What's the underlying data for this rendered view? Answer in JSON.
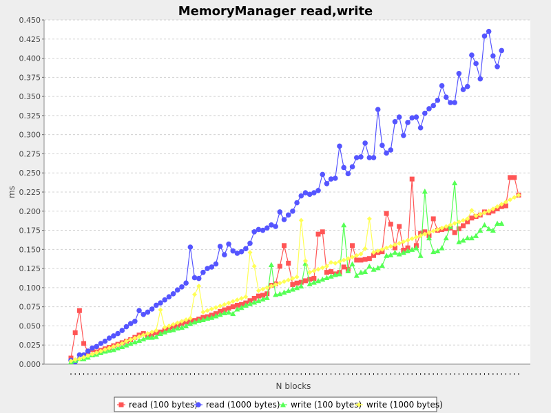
{
  "chart_data": {
    "type": "line",
    "title": "MemoryManager read,write",
    "xlabel": "N blocks",
    "ylabel": "ms",
    "ylim": [
      0,
      0.45
    ],
    "y_ticks": [
      "0.000",
      "0.025",
      "0.050",
      "0.075",
      "0.100",
      "0.125",
      "0.150",
      "0.175",
      "0.200",
      "0.225",
      "0.250",
      "0.275",
      "0.300",
      "0.325",
      "0.350",
      "0.375",
      "0.400",
      "0.425",
      "0.450"
    ],
    "grid": true,
    "legend_position": "bottom",
    "series": [
      {
        "name": "read (100 bytes)",
        "color": "#ff5555",
        "marker": "square",
        "values": [
          0.008,
          0.041,
          0.07,
          0.027,
          0.016,
          0.019,
          0.016,
          0.018,
          0.02,
          0.022,
          0.024,
          0.026,
          0.028,
          0.03,
          0.032,
          0.035,
          0.038,
          0.04,
          0.037,
          0.039,
          0.041,
          0.042,
          0.044,
          0.046,
          0.049,
          0.051,
          0.053,
          0.055,
          0.056,
          0.057,
          0.059,
          0.061,
          0.062,
          0.064,
          0.066,
          0.069,
          0.071,
          0.073,
          0.075,
          0.077,
          0.078,
          0.08,
          0.083,
          0.086,
          0.089,
          0.09,
          0.092,
          0.103,
          0.105,
          0.128,
          0.155,
          0.132,
          0.104,
          0.106,
          0.107,
          0.109,
          0.111,
          0.112,
          0.17,
          0.173,
          0.12,
          0.121,
          0.118,
          0.12,
          0.127,
          0.124,
          0.155,
          0.136,
          0.136,
          0.137,
          0.138,
          0.142,
          0.146,
          0.147,
          0.197,
          0.183,
          0.152,
          0.18,
          0.149,
          0.152,
          0.242,
          0.155,
          0.171,
          0.173,
          0.168,
          0.19,
          0.175,
          0.176,
          0.177,
          0.178,
          0.172,
          0.177,
          0.181,
          0.186,
          0.191,
          0.193,
          0.195,
          0.199,
          0.198,
          0.2,
          0.203,
          0.206,
          0.207,
          0.244,
          0.244,
          0.221
        ]
      },
      {
        "name": "read (1000 bytes)",
        "color": "#5555ff",
        "marker": "circle",
        "values": [
          0.005,
          0.003,
          0.012,
          0.012,
          0.017,
          0.021,
          0.023,
          0.027,
          0.03,
          0.034,
          0.037,
          0.04,
          0.044,
          0.049,
          0.053,
          0.056,
          0.07,
          0.065,
          0.068,
          0.072,
          0.077,
          0.08,
          0.084,
          0.088,
          0.092,
          0.097,
          0.101,
          0.106,
          0.153,
          0.113,
          0.112,
          0.12,
          0.125,
          0.127,
          0.131,
          0.154,
          0.143,
          0.157,
          0.148,
          0.145,
          0.147,
          0.151,
          0.158,
          0.173,
          0.176,
          0.175,
          0.178,
          0.182,
          0.18,
          0.199,
          0.189,
          0.195,
          0.2,
          0.211,
          0.22,
          0.224,
          0.222,
          0.224,
          0.227,
          0.248,
          0.236,
          0.242,
          0.243,
          0.285,
          0.257,
          0.249,
          0.258,
          0.27,
          0.271,
          0.289,
          0.27,
          0.27,
          0.333,
          0.286,
          0.276,
          0.28,
          0.317,
          0.323,
          0.299,
          0.316,
          0.322,
          0.323,
          0.309,
          0.328,
          0.334,
          0.338,
          0.345,
          0.364,
          0.349,
          0.342,
          0.342,
          0.38,
          0.359,
          0.363,
          0.404,
          0.393,
          0.373,
          0.429,
          0.435,
          0.403,
          0.389,
          0.41
        ]
      },
      {
        "name": "write (100 bytes)",
        "color": "#55ff55",
        "marker": "triangle",
        "values": [
          0.003,
          0.005,
          0.007,
          0.007,
          0.009,
          0.012,
          0.013,
          0.015,
          0.017,
          0.018,
          0.019,
          0.021,
          0.023,
          0.025,
          0.027,
          0.029,
          0.031,
          0.033,
          0.035,
          0.035,
          0.036,
          0.04,
          0.042,
          0.044,
          0.045,
          0.047,
          0.048,
          0.05,
          0.053,
          0.055,
          0.057,
          0.058,
          0.06,
          0.061,
          0.063,
          0.065,
          0.067,
          0.068,
          0.066,
          0.072,
          0.074,
          0.077,
          0.079,
          0.081,
          0.083,
          0.085,
          0.087,
          0.13,
          0.091,
          0.092,
          0.094,
          0.096,
          0.098,
          0.1,
          0.102,
          0.132,
          0.105,
          0.107,
          0.109,
          0.111,
          0.113,
          0.115,
          0.117,
          0.118,
          0.182,
          0.122,
          0.131,
          0.116,
          0.12,
          0.121,
          0.128,
          0.124,
          0.126,
          0.129,
          0.142,
          0.143,
          0.146,
          0.144,
          0.146,
          0.148,
          0.15,
          0.152,
          0.142,
          0.226,
          0.165,
          0.147,
          0.148,
          0.152,
          0.165,
          0.18,
          0.237,
          0.16,
          0.162,
          0.165,
          0.165,
          0.168,
          0.175,
          0.182,
          0.177,
          0.175,
          0.184,
          0.184
        ]
      },
      {
        "name": "write (1000 bytes)",
        "color": "#ffff55",
        "marker": "diamond",
        "values": [
          0.004,
          0.006,
          0.007,
          0.009,
          0.011,
          0.013,
          0.015,
          0.017,
          0.019,
          0.021,
          0.023,
          0.025,
          0.027,
          0.03,
          0.032,
          0.034,
          0.036,
          0.038,
          0.04,
          0.042,
          0.044,
          0.071,
          0.048,
          0.05,
          0.052,
          0.054,
          0.056,
          0.058,
          0.06,
          0.091,
          0.102,
          0.068,
          0.07,
          0.072,
          0.074,
          0.076,
          0.078,
          0.08,
          0.082,
          0.084,
          0.086,
          0.088,
          0.146,
          0.128,
          0.096,
          0.098,
          0.1,
          0.102,
          0.104,
          0.106,
          0.108,
          0.11,
          0.112,
          0.114,
          0.188,
          0.135,
          0.12,
          0.122,
          0.124,
          0.126,
          0.128,
          0.133,
          0.132,
          0.134,
          0.136,
          0.138,
          0.14,
          0.142,
          0.144,
          0.151,
          0.19,
          0.146,
          0.148,
          0.15,
          0.152,
          0.154,
          0.156,
          0.158,
          0.16,
          0.162,
          0.164,
          0.166,
          0.168,
          0.17,
          0.172,
          0.174,
          0.176,
          0.178,
          0.18,
          0.182,
          0.184,
          0.186,
          0.188,
          0.19,
          0.201,
          0.194,
          0.196,
          0.198,
          0.2,
          0.203,
          0.206,
          0.209,
          0.212,
          0.215,
          0.218,
          0.221
        ]
      }
    ]
  }
}
